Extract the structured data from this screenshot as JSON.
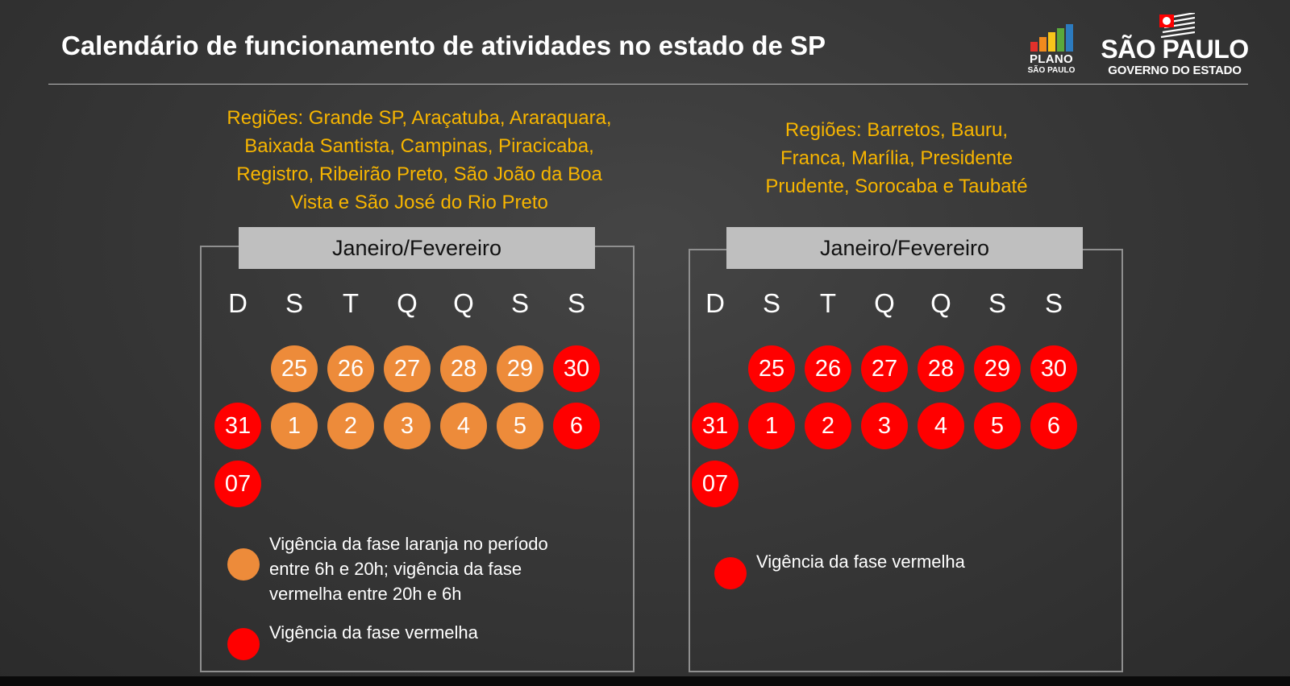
{
  "title": "Calendário de funcionamento de atividades no estado de SP",
  "logos": {
    "plano": {
      "line1": "PLANO",
      "line2": "SÃO PAULO",
      "bar_colors": [
        "#e2312b",
        "#f18a1e",
        "#f7c51b",
        "#5aa93b",
        "#2c7bbf"
      ]
    },
    "governo": {
      "line1": "SÃO PAULO",
      "line2": "GOVERNO DO ESTADO"
    }
  },
  "colors": {
    "orange_phase": "#ed8b3a",
    "red_phase": "#ff0000",
    "region_text": "#f7b500",
    "header_bg": "#bfbfbf"
  },
  "calendars": [
    {
      "regions_lines": [
        "Regiões: Grande SP, Araçatuba, Araraquara,",
        "Baixada Santista, Campinas, Piracicaba,",
        "Registro, Ribeirão Preto, São João da Boa",
        "Vista e São José do Rio Preto"
      ],
      "header": "Janeiro/Fevereiro",
      "weekdays": [
        "D",
        "S",
        "T",
        "Q",
        "Q",
        "S",
        "S"
      ],
      "weeks": [
        [
          null,
          {
            "day": "25",
            "phase": "orange"
          },
          {
            "day": "26",
            "phase": "orange"
          },
          {
            "day": "27",
            "phase": "orange"
          },
          {
            "day": "28",
            "phase": "orange"
          },
          {
            "day": "29",
            "phase": "orange"
          },
          {
            "day": "30",
            "phase": "red"
          }
        ],
        [
          {
            "day": "31",
            "phase": "red"
          },
          {
            "day": "1",
            "phase": "orange"
          },
          {
            "day": "2",
            "phase": "orange"
          },
          {
            "day": "3",
            "phase": "orange"
          },
          {
            "day": "4",
            "phase": "orange"
          },
          {
            "day": "5",
            "phase": "orange"
          },
          {
            "day": "6",
            "phase": "red"
          }
        ],
        [
          {
            "day": "07",
            "phase": "red"
          },
          null,
          null,
          null,
          null,
          null,
          null
        ]
      ],
      "legend": [
        {
          "phase": "orange",
          "lines": [
            "Vigência da fase laranja no período",
            "entre 6h e 20h; vigência da fase",
            "vermelha entre 20h e 6h"
          ]
        },
        {
          "phase": "red",
          "lines": [
            "Vigência da fase vermelha"
          ]
        }
      ]
    },
    {
      "regions_lines": [
        "Regiões: Barretos, Bauru,",
        "Franca, Marília, Presidente",
        "Prudente, Sorocaba e Taubaté"
      ],
      "header": "Janeiro/Fevereiro",
      "weekdays": [
        "D",
        "S",
        "T",
        "Q",
        "Q",
        "S",
        "S"
      ],
      "weeks": [
        [
          null,
          {
            "day": "25",
            "phase": "red"
          },
          {
            "day": "26",
            "phase": "red"
          },
          {
            "day": "27",
            "phase": "red"
          },
          {
            "day": "28",
            "phase": "red"
          },
          {
            "day": "29",
            "phase": "red"
          },
          {
            "day": "30",
            "phase": "red"
          }
        ],
        [
          {
            "day": "31",
            "phase": "red"
          },
          {
            "day": "1",
            "phase": "red"
          },
          {
            "day": "2",
            "phase": "red"
          },
          {
            "day": "3",
            "phase": "red"
          },
          {
            "day": "4",
            "phase": "red"
          },
          {
            "day": "5",
            "phase": "red"
          },
          {
            "day": "6",
            "phase": "red"
          }
        ],
        [
          {
            "day": "07",
            "phase": "red"
          },
          null,
          null,
          null,
          null,
          null,
          null
        ]
      ],
      "legend": [
        {
          "phase": "red",
          "lines": [
            "Vigência da fase vermelha"
          ]
        }
      ]
    }
  ]
}
